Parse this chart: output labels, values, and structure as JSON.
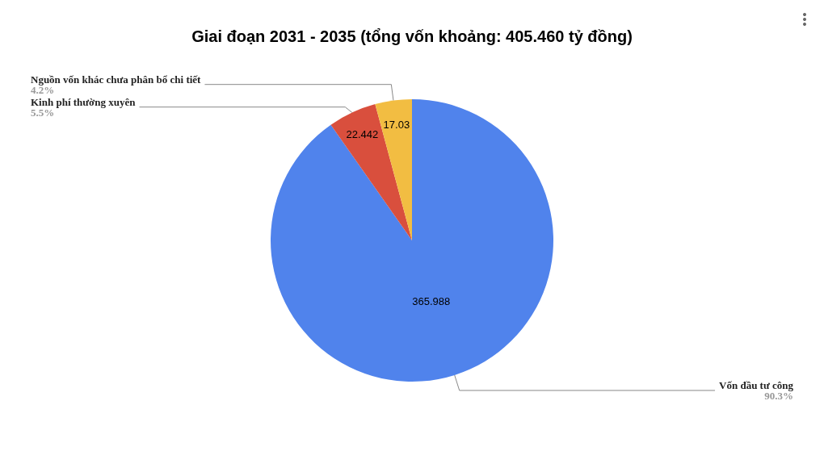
{
  "chart_data": {
    "type": "pie",
    "title": "Giai đoạn 2031 - 2035 (tổng vốn khoảng: 405.460 tỷ đồng)",
    "categories": [
      "Vốn đầu tư công",
      "Kinh phí thường xuyên",
      "Nguồn vốn khác chưa phân bổ chi tiết"
    ],
    "values": [
      365.988,
      22.442,
      17.03
    ],
    "colors": [
      "#5083ec",
      "#d94f3d",
      "#f2bd42"
    ],
    "annotations": [
      "90.3%",
      "5.5%",
      "4.2%"
    ],
    "data_labels": true,
    "legend": false
  }
}
